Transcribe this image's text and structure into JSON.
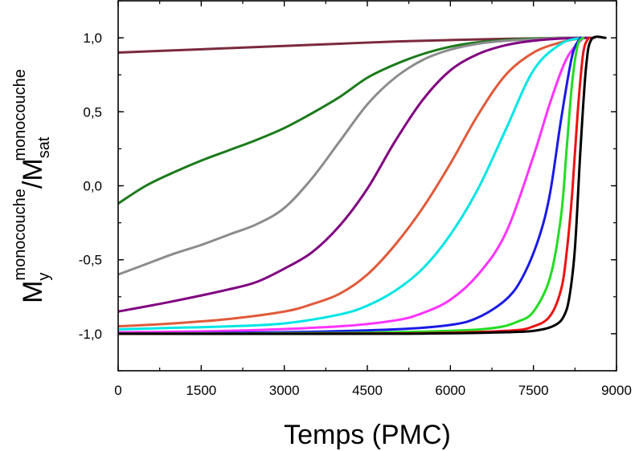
{
  "chart_data": {
    "type": "line",
    "xlabel": "Temps (PMC)",
    "ylabel": {
      "main": "M",
      "sub": "y",
      "sup": "monocouche",
      "sep": "/M",
      "sub2": "sat",
      "sup2": "monocouche"
    },
    "xlim": [
      0,
      9000
    ],
    "ylim": [
      -1.25,
      1.25
    ],
    "xticks": [
      0,
      1500,
      3000,
      4500,
      6000,
      7500,
      9000
    ],
    "xtick_labels": [
      "0",
      "1500",
      "3000",
      "4500",
      "6000",
      "7500",
      "9000"
    ],
    "yticks": [
      -1.0,
      -0.5,
      0.0,
      0.5,
      1.0
    ],
    "ytick_labels": [
      "-1,0",
      "-0,5",
      "0,0",
      "0,5",
      "1,0"
    ],
    "grid": false,
    "series": [
      {
        "color": "#7b2a3c",
        "x": [
          0,
          1000,
          2000,
          3000,
          4000,
          5000,
          6000,
          7000,
          8000,
          8600
        ],
        "y": [
          0.9,
          0.915,
          0.93,
          0.945,
          0.96,
          0.975,
          0.985,
          0.993,
          0.998,
          1.0
        ]
      },
      {
        "color": "#1a7a1a",
        "x": [
          0,
          500,
          1000,
          1500,
          2000,
          2500,
          3000,
          3500,
          4000,
          4500,
          5000,
          5500,
          6000,
          6500,
          7000,
          7500,
          8000,
          8500
        ],
        "y": [
          -0.12,
          0.0,
          0.09,
          0.17,
          0.24,
          0.31,
          0.39,
          0.49,
          0.6,
          0.73,
          0.82,
          0.89,
          0.94,
          0.97,
          0.985,
          0.995,
          1.0,
          1.0
        ]
      },
      {
        "color": "#8c8c8c",
        "x": [
          0,
          500,
          1000,
          1500,
          2000,
          2500,
          3000,
          3500,
          4000,
          4500,
          5000,
          5500,
          6000,
          6500,
          7000,
          7500,
          8000,
          8500
        ],
        "y": [
          -0.6,
          -0.53,
          -0.46,
          -0.4,
          -0.33,
          -0.26,
          -0.15,
          0.05,
          0.3,
          0.55,
          0.73,
          0.85,
          0.92,
          0.96,
          0.98,
          0.99,
          1.0,
          1.0
        ]
      },
      {
        "color": "#800080",
        "x": [
          0,
          1000,
          2000,
          2500,
          3000,
          3500,
          4000,
          4500,
          5000,
          5500,
          6000,
          6500,
          7000,
          7500,
          8000,
          8500
        ],
        "y": [
          -0.85,
          -0.78,
          -0.7,
          -0.65,
          -0.56,
          -0.45,
          -0.27,
          -0.02,
          0.3,
          0.58,
          0.78,
          0.89,
          0.95,
          0.98,
          0.995,
          1.0
        ]
      },
      {
        "color": "#e05a3a",
        "x": [
          0,
          1000,
          2000,
          3000,
          3500,
          4000,
          4500,
          5000,
          5500,
          6000,
          6500,
          7000,
          7500,
          8000,
          8400
        ],
        "y": [
          -0.95,
          -0.93,
          -0.9,
          -0.85,
          -0.8,
          -0.73,
          -0.6,
          -0.4,
          -0.15,
          0.15,
          0.48,
          0.75,
          0.9,
          0.97,
          1.0
        ]
      },
      {
        "color": "#00e5e5",
        "x": [
          0,
          1000,
          2000,
          3000,
          4000,
          4500,
          5000,
          5500,
          6000,
          6500,
          7000,
          7500,
          8000,
          8400
        ],
        "y": [
          -0.97,
          -0.96,
          -0.95,
          -0.93,
          -0.87,
          -0.81,
          -0.71,
          -0.56,
          -0.33,
          -0.02,
          0.38,
          0.78,
          0.96,
          1.0
        ]
      },
      {
        "color": "#ff33ff",
        "x": [
          0,
          2000,
          4000,
          5000,
          5500,
          6000,
          6500,
          7000,
          7500,
          7800,
          8100,
          8400
        ],
        "y": [
          -0.99,
          -0.98,
          -0.95,
          -0.91,
          -0.86,
          -0.77,
          -0.6,
          -0.32,
          0.2,
          0.56,
          0.86,
          1.0
        ]
      },
      {
        "color": "#1a1ae6",
        "x": [
          0,
          3000,
          5000,
          6000,
          6500,
          7000,
          7300,
          7600,
          7800,
          8000,
          8200,
          8350
        ],
        "y": [
          -1.0,
          -0.99,
          -0.97,
          -0.94,
          -0.89,
          -0.77,
          -0.62,
          -0.35,
          -0.05,
          0.45,
          0.88,
          1.0
        ]
      },
      {
        "color": "#22dd22",
        "x": [
          0,
          4000,
          6000,
          6800,
          7200,
          7500,
          7800,
          8000,
          8100,
          8200,
          8300,
          8400
        ],
        "y": [
          -1.0,
          -0.995,
          -0.98,
          -0.96,
          -0.92,
          -0.85,
          -0.62,
          -0.2,
          0.25,
          0.7,
          0.95,
          1.0
        ]
      },
      {
        "color": "#ee1111",
        "x": [
          0,
          5000,
          7000,
          7500,
          7800,
          8000,
          8100,
          8200,
          8300,
          8400,
          8500
        ],
        "y": [
          -1.0,
          -0.998,
          -0.98,
          -0.95,
          -0.88,
          -0.7,
          -0.45,
          -0.05,
          0.5,
          0.9,
          1.0
        ]
      },
      {
        "color": "#000000",
        "x": [
          0,
          5000,
          7000,
          7600,
          7900,
          8050,
          8150,
          8250,
          8350,
          8450,
          8550,
          8800
        ],
        "y": [
          -1.0,
          -1.0,
          -0.99,
          -0.975,
          -0.94,
          -0.88,
          -0.75,
          -0.42,
          0.25,
          0.8,
          0.99,
          1.0
        ]
      }
    ]
  }
}
